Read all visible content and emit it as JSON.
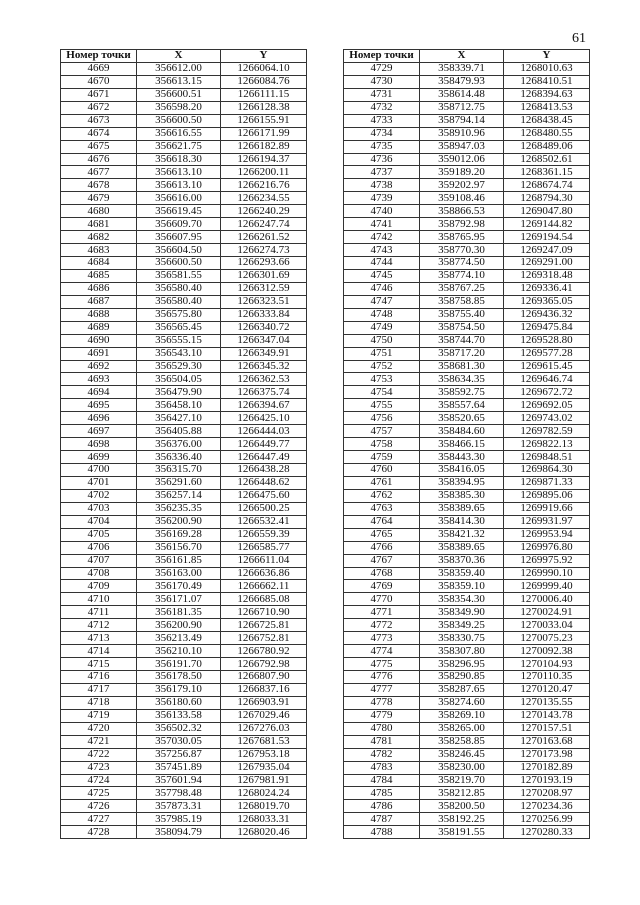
{
  "page_number": "61",
  "headers": [
    "Номер точки",
    "X",
    "Y"
  ],
  "left": {
    "rows": [
      [
        "4669",
        "356612.00",
        "1266064.10"
      ],
      [
        "4670",
        "356613.15",
        "1266084.76"
      ],
      [
        "4671",
        "356600.51",
        "1266111.15"
      ],
      [
        "4672",
        "356598.20",
        "1266128.38"
      ],
      [
        "4673",
        "356600.50",
        "1266155.91"
      ],
      [
        "4674",
        "356616.55",
        "1266171.99"
      ],
      [
        "4675",
        "356621.75",
        "1266182.89"
      ],
      [
        "4676",
        "356618.30",
        "1266194.37"
      ],
      [
        "4677",
        "356613.10",
        "1266200.11"
      ],
      [
        "4678",
        "356613.10",
        "1266216.76"
      ],
      [
        "4679",
        "356616.00",
        "1266234.55"
      ],
      [
        "4680",
        "356619.45",
        "1266240.29"
      ],
      [
        "4681",
        "356609.70",
        "1266247.74"
      ],
      [
        "4682",
        "356607.95",
        "1266261.52"
      ],
      [
        "4683",
        "356604.50",
        "1266274.73"
      ],
      [
        "4684",
        "356600.50",
        "1266293.66"
      ],
      [
        "4685",
        "356581.55",
        "1266301.69"
      ],
      [
        "4686",
        "356580.40",
        "1266312.59"
      ],
      [
        "4687",
        "356580.40",
        "1266323.51"
      ],
      [
        "4688",
        "356575.80",
        "1266333.84"
      ],
      [
        "4689",
        "356565.45",
        "1266340.72"
      ],
      [
        "4690",
        "356555.15",
        "1266347.04"
      ],
      [
        "4691",
        "356543.10",
        "1266349.91"
      ],
      [
        "4692",
        "356529.30",
        "1266345.32"
      ],
      [
        "4693",
        "356504.05",
        "1266362.53"
      ],
      [
        "4694",
        "356479.90",
        "1266375.74"
      ],
      [
        "4695",
        "356458.10",
        "1266394.67"
      ],
      [
        "4696",
        "356427.10",
        "1266425.10"
      ],
      [
        "4697",
        "356405.88",
        "1266444.03"
      ],
      [
        "4698",
        "356376.00",
        "1266449.77"
      ],
      [
        "4699",
        "356336.40",
        "1266447.49"
      ],
      [
        "4700",
        "356315.70",
        "1266438.28"
      ],
      [
        "4701",
        "356291.60",
        "1266448.62"
      ],
      [
        "4702",
        "356257.14",
        "1266475.60"
      ],
      [
        "4703",
        "356235.35",
        "1266500.25"
      ],
      [
        "4704",
        "356200.90",
        "1266532.41"
      ],
      [
        "4705",
        "356169.28",
        "1266559.39"
      ],
      [
        "4706",
        "356156.70",
        "1266585.77"
      ],
      [
        "4707",
        "356161.85",
        "1266611.04"
      ],
      [
        "4708",
        "356163.00",
        "1266636.86"
      ],
      [
        "4709",
        "356170.49",
        "1266662.11"
      ],
      [
        "4710",
        "356171.07",
        "1266685.08"
      ],
      [
        "4711",
        "356181.35",
        "1266710.90"
      ],
      [
        "4712",
        "356200.90",
        "1266725.81"
      ],
      [
        "4713",
        "356213.49",
        "1266752.81"
      ],
      [
        "4714",
        "356210.10",
        "1266780.92"
      ],
      [
        "4715",
        "356191.70",
        "1266792.98"
      ],
      [
        "4716",
        "356178.50",
        "1266807.90"
      ],
      [
        "4717",
        "356179.10",
        "1266837.16"
      ],
      [
        "4718",
        "356180.60",
        "1266903.91"
      ],
      [
        "4719",
        "356133.58",
        "1267029.46"
      ],
      [
        "4720",
        "356502.32",
        "1267276.03"
      ],
      [
        "4721",
        "357030.05",
        "1267681.53"
      ],
      [
        "4722",
        "357256.87",
        "1267953.18"
      ],
      [
        "4723",
        "357451.89",
        "1267935.04"
      ],
      [
        "4724",
        "357601.94",
        "1267981.91"
      ],
      [
        "4725",
        "357798.48",
        "1268024.24"
      ],
      [
        "4726",
        "357873.31",
        "1268019.70"
      ],
      [
        "4727",
        "357985.19",
        "1268033.31"
      ],
      [
        "4728",
        "358094.79",
        "1268020.46"
      ]
    ]
  },
  "right": {
    "rows": [
      [
        "4729",
        "358339.71",
        "1268010.63"
      ],
      [
        "4730",
        "358479.93",
        "1268410.51"
      ],
      [
        "4731",
        "358614.48",
        "1268394.63"
      ],
      [
        "4732",
        "358712.75",
        "1268413.53"
      ],
      [
        "4733",
        "358794.14",
        "1268438.45"
      ],
      [
        "4734",
        "358910.96",
        "1268480.55"
      ],
      [
        "4735",
        "358947.03",
        "1268489.06"
      ],
      [
        "4736",
        "359012.06",
        "1268502.61"
      ],
      [
        "4737",
        "359189.20",
        "1268361.15"
      ],
      [
        "4738",
        "359202.97",
        "1268674.74"
      ],
      [
        "4739",
        "359108.46",
        "1268794.30"
      ],
      [
        "4740",
        "358866.53",
        "1269047.80"
      ],
      [
        "4741",
        "358792.98",
        "1269144.82"
      ],
      [
        "4742",
        "358765.95",
        "1269194.54"
      ],
      [
        "4743",
        "358770.30",
        "1269247.09"
      ],
      [
        "4744",
        "358774.50",
        "1269291.00"
      ],
      [
        "4745",
        "358774.10",
        "1269318.48"
      ],
      [
        "4746",
        "358767.25",
        "1269336.41"
      ],
      [
        "4747",
        "358758.85",
        "1269365.05"
      ],
      [
        "4748",
        "358755.40",
        "1269436.32"
      ],
      [
        "4749",
        "358754.50",
        "1269475.84"
      ],
      [
        "4750",
        "358744.70",
        "1269528.80"
      ],
      [
        "4751",
        "358717.20",
        "1269577.28"
      ],
      [
        "4752",
        "358681.30",
        "1269615.45"
      ],
      [
        "4753",
        "358634.35",
        "1269646.74"
      ],
      [
        "4754",
        "358592.75",
        "1269672.72"
      ],
      [
        "4755",
        "358557.64",
        "1269692.05"
      ],
      [
        "4756",
        "358520.65",
        "1269743.02"
      ],
      [
        "4757",
        "358484.60",
        "1269782.59"
      ],
      [
        "4758",
        "358466.15",
        "1269822.13"
      ],
      [
        "4759",
        "358443.30",
        "1269848.51"
      ],
      [
        "4760",
        "358416.05",
        "1269864.30"
      ],
      [
        "4761",
        "358394.95",
        "1269871.33"
      ],
      [
        "4762",
        "358385.30",
        "1269895.06"
      ],
      [
        "4763",
        "358389.65",
        "1269919.66"
      ],
      [
        "4764",
        "358414.30",
        "1269931.97"
      ],
      [
        "4765",
        "358421.32",
        "1269953.94"
      ],
      [
        "4766",
        "358389.65",
        "1269976.80"
      ],
      [
        "4767",
        "358370.36",
        "1269975.92"
      ],
      [
        "4768",
        "358359.40",
        "1269990.10"
      ],
      [
        "4769",
        "358359.10",
        "1269999.40"
      ],
      [
        "4770",
        "358354.30",
        "1270006.40"
      ],
      [
        "4771",
        "358349.90",
        "1270024.91"
      ],
      [
        "4772",
        "358349.25",
        "1270033.04"
      ],
      [
        "4773",
        "358330.75",
        "1270075.23"
      ],
      [
        "4774",
        "358307.80",
        "1270092.38"
      ],
      [
        "4775",
        "358296.95",
        "1270104.93"
      ],
      [
        "4776",
        "358290.85",
        "1270110.35"
      ],
      [
        "4777",
        "358287.65",
        "1270120.47"
      ],
      [
        "4778",
        "358274.60",
        "1270135.55"
      ],
      [
        "4779",
        "358269.10",
        "1270143.78"
      ],
      [
        "4780",
        "358265.00",
        "1270157.51"
      ],
      [
        "4781",
        "358258.85",
        "1270163.68"
      ],
      [
        "4782",
        "358246.45",
        "1270173.98"
      ],
      [
        "4783",
        "358230.00",
        "1270182.89"
      ],
      [
        "4784",
        "358219.70",
        "1270193.19"
      ],
      [
        "4785",
        "358212.85",
        "1270208.97"
      ],
      [
        "4786",
        "358200.50",
        "1270234.36"
      ],
      [
        "4787",
        "358192.25",
        "1270256.99"
      ],
      [
        "4788",
        "358191.55",
        "1270280.33"
      ]
    ]
  }
}
